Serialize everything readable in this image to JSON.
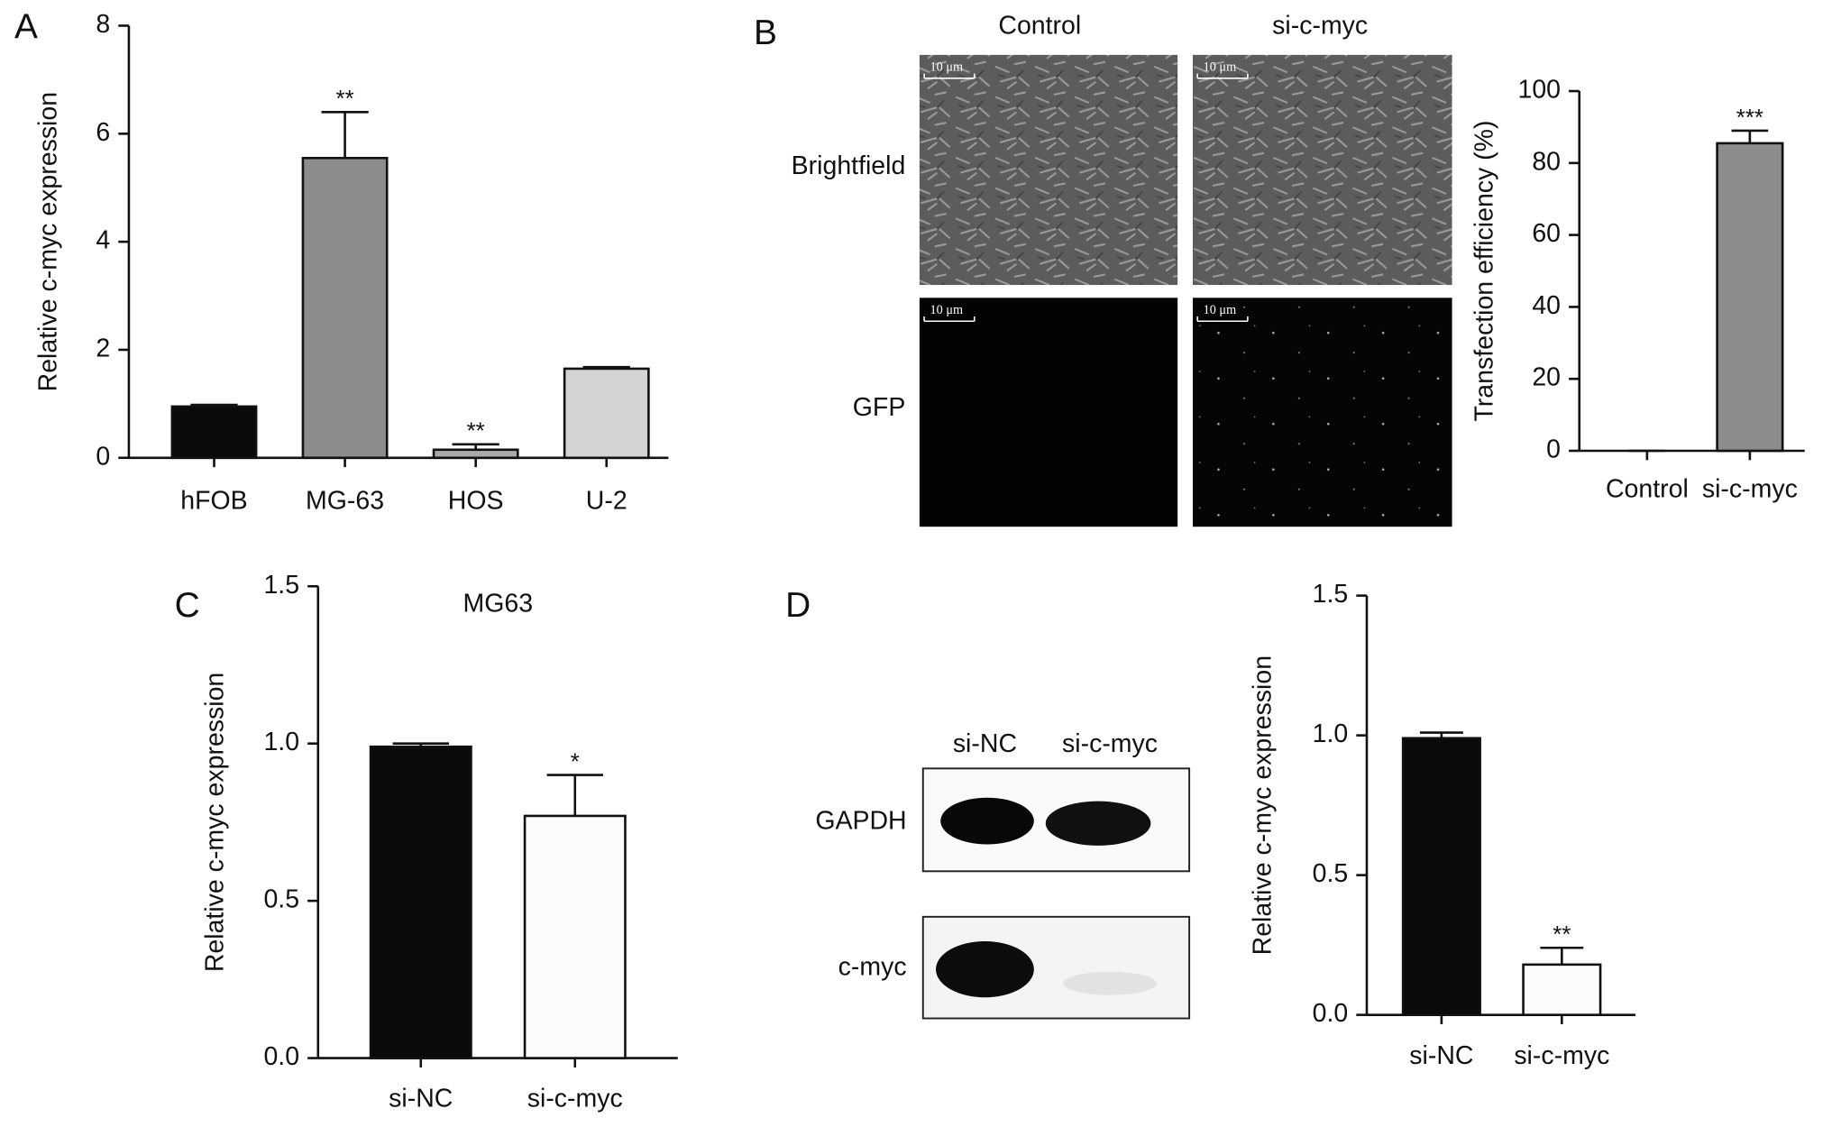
{
  "chart_data": [
    {
      "type": "bar",
      "panel": "A",
      "ylabel": "Relative c-myc expression",
      "categories": [
        "hFOB",
        "MG-63",
        "HOS",
        "U-2"
      ],
      "values": [
        0.95,
        5.55,
        0.15,
        1.65
      ],
      "errors": [
        0.03,
        0.85,
        0.1,
        0.03
      ],
      "annotations": [
        null,
        "**",
        "**",
        null
      ],
      "colors": [
        "#0a0a0a",
        "#8c8c8c",
        "#a9a9a9",
        "#d3d3d3"
      ],
      "ylim": [
        0,
        8
      ],
      "yticks": [
        0,
        2,
        4,
        6,
        8
      ]
    },
    {
      "type": "bar",
      "panel": "B",
      "ylabel": "Transfection efficiency (%)",
      "categories": [
        "Control",
        "si-c-myc"
      ],
      "values": [
        0,
        85.5
      ],
      "errors": [
        0,
        3.5
      ],
      "annotations": [
        null,
        "***"
      ],
      "colors": [
        "#8c8c8c",
        "#8c8c8c"
      ],
      "ylim": [
        0,
        100
      ],
      "yticks": [
        0,
        20,
        40,
        60,
        80,
        100
      ]
    },
    {
      "type": "bar",
      "panel": "C",
      "title": "MG63",
      "ylabel": "Relative c-myc expression",
      "categories": [
        "si-NC",
        "si-c-myc"
      ],
      "values": [
        0.99,
        0.77
      ],
      "errors": [
        0.01,
        0.13
      ],
      "annotations": [
        null,
        "*"
      ],
      "colors": [
        "#0a0a0a",
        "#fcfcfc"
      ],
      "ylim": [
        0,
        1.5
      ],
      "yticks": [
        {
          "value": 0,
          "label": "0.0"
        },
        0.5,
        {
          "value": 1,
          "label": "1.0"
        },
        1.5
      ]
    },
    {
      "type": "bar",
      "panel": "D",
      "ylabel": "Relative c-myc expression",
      "categories": [
        "si-NC",
        "si-c-myc"
      ],
      "values": [
        0.99,
        0.18
      ],
      "errors": [
        0.02,
        0.06
      ],
      "annotations": [
        null,
        "**"
      ],
      "colors": [
        "#0a0a0a",
        "#fcfcfc"
      ],
      "ylim": [
        0,
        1.5
      ],
      "yticks": [
        {
          "value": 0,
          "label": "0.0"
        },
        0.5,
        {
          "value": 1,
          "label": "1.0"
        },
        1.5
      ]
    }
  ],
  "micrographs": {
    "columns": [
      "Control",
      "si-c-myc"
    ],
    "rows": [
      "Brightfield",
      "GFP"
    ],
    "scale_bar": "10 μm"
  },
  "western_blot": {
    "lanes": [
      "si-NC",
      "si-c-myc"
    ],
    "bands": [
      "GAPDH",
      "c-myc"
    ]
  }
}
